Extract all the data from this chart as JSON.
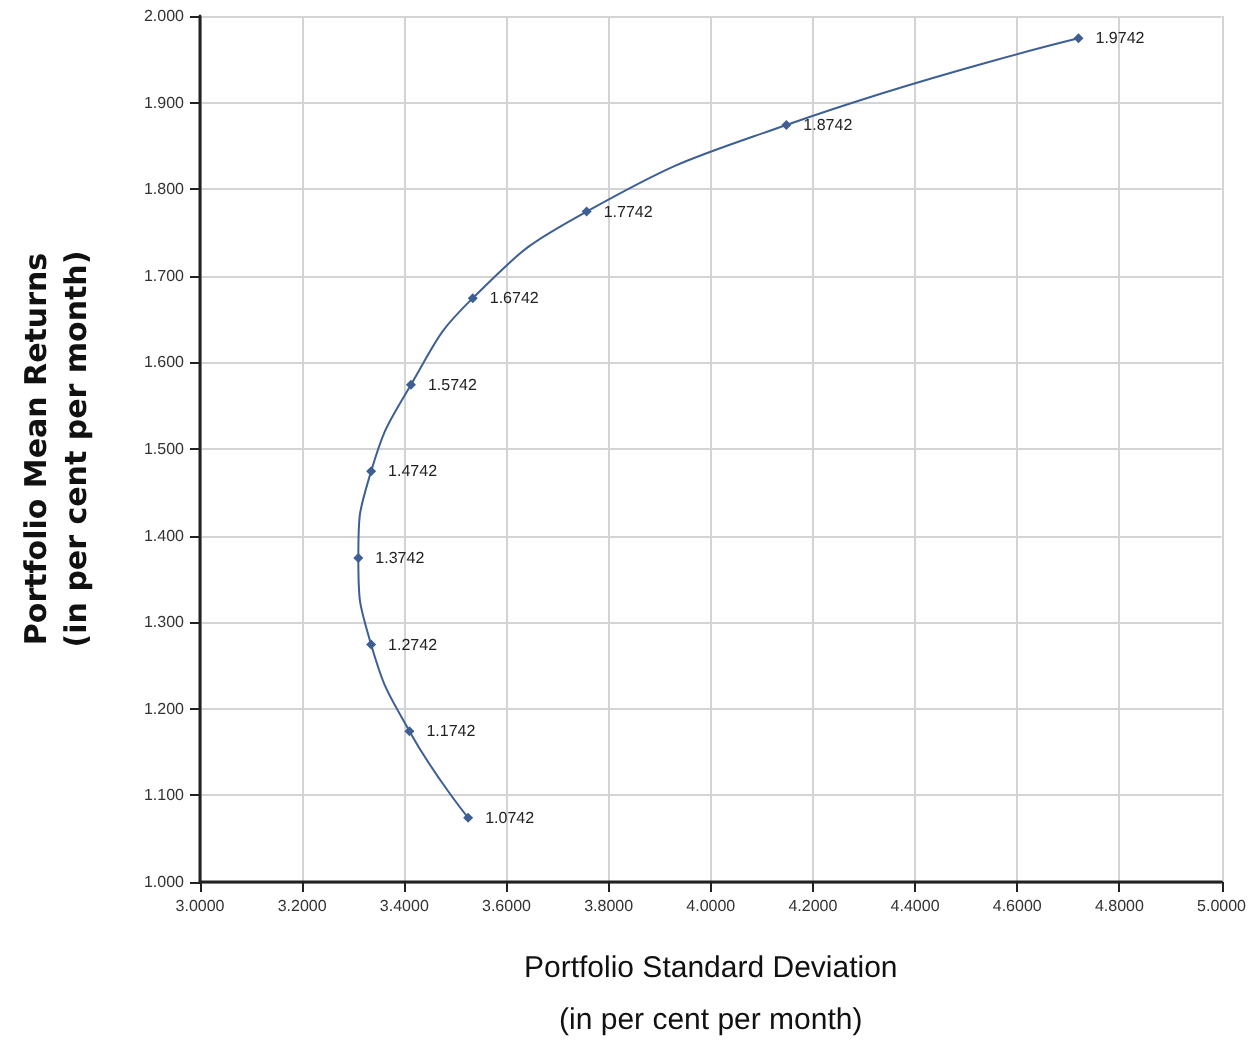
{
  "chart_data": {
    "type": "line",
    "xlabel": "Portfolio Standard Deviation\n(in per cent per month)",
    "ylabel": "Portfolio Mean Returns\n(in per cent per month)",
    "series": [
      {
        "color": "#3d5f94",
        "x": [
          3.525,
          3.41,
          3.335,
          3.31,
          3.335,
          3.413,
          3.534,
          3.757,
          4.148,
          4.72
        ],
        "values": [
          1.0742,
          1.1742,
          1.2742,
          1.3742,
          1.4742,
          1.5742,
          1.6742,
          1.7742,
          1.8742,
          1.9742
        ]
      }
    ],
    "xlim": [
      3.0,
      5.0
    ],
    "xticks": [
      {
        "value": 3.0,
        "label": "3.0000"
      },
      {
        "value": 3.2,
        "label": "3.2000"
      },
      {
        "value": 3.4,
        "label": "3.4000"
      },
      {
        "value": 3.6,
        "label": "3.6000"
      },
      {
        "value": 3.8,
        "label": "3.8000"
      },
      {
        "value": 4.0,
        "label": "4.0000"
      },
      {
        "value": 4.2,
        "label": "4.2000"
      },
      {
        "value": 4.4,
        "label": "4.4000"
      },
      {
        "value": 4.6,
        "label": "4.6000"
      },
      {
        "value": 4.8,
        "label": "4.8000"
      },
      {
        "value": 5.0,
        "label": "5.0000"
      }
    ],
    "ylim": [
      1.0,
      2.0
    ],
    "yticks": [
      {
        "value": 1.0,
        "label": "1.000"
      },
      {
        "value": 1.1,
        "label": "1.100"
      },
      {
        "value": 1.2,
        "label": "1.200"
      },
      {
        "value": 1.3,
        "label": "1.300"
      },
      {
        "value": 1.4,
        "label": "1.400"
      },
      {
        "value": 1.5,
        "label": "1.500"
      },
      {
        "value": 1.6,
        "label": "1.600"
      },
      {
        "value": 1.7,
        "label": "1.700"
      },
      {
        "value": 1.8,
        "label": "1.800"
      },
      {
        "value": 1.9,
        "label": "1.900"
      },
      {
        "value": 2.0,
        "label": "2.000"
      }
    ],
    "data_labels": true,
    "grid": true,
    "marker": "diamond",
    "line_style": "solid"
  }
}
